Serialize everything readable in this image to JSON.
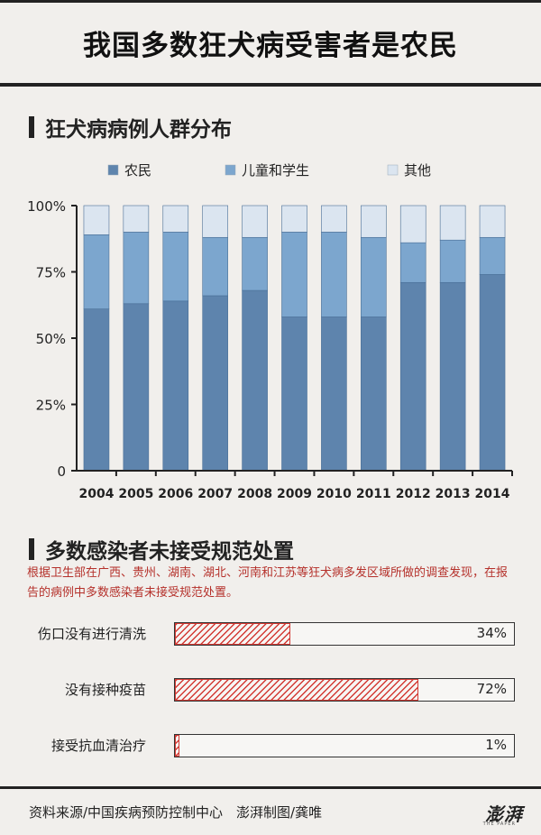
{
  "header": {
    "title": "我国多数狂犬病受害者是农民"
  },
  "section1": {
    "title": "狂犬病病例人群分布"
  },
  "chart_data": {
    "type": "bar",
    "stacked": true,
    "title": "狂犬病病例人群分布",
    "categories": [
      "2004",
      "2005",
      "2006",
      "2007",
      "2008",
      "2009",
      "2010",
      "2011",
      "2012",
      "2013",
      "2014"
    ],
    "series": [
      {
        "name": "农民",
        "color": "#5e84ad",
        "values": [
          61,
          63,
          64,
          66,
          68,
          58,
          58,
          58,
          71,
          71,
          74
        ]
      },
      {
        "name": "儿童和学生",
        "color": "#7ca6ce",
        "values": [
          28,
          27,
          26,
          22,
          20,
          32,
          32,
          30,
          15,
          16,
          14
        ]
      },
      {
        "name": "其他",
        "color": "#dbe5f0",
        "values": [
          11,
          10,
          10,
          12,
          12,
          10,
          10,
          12,
          14,
          13,
          12
        ]
      }
    ],
    "yticks": [
      "0",
      "25%",
      "50%",
      "75%",
      "100%"
    ],
    "ylim": [
      0,
      100
    ],
    "legend_position": "top"
  },
  "section2": {
    "title": "多数感染者未接受规范处置",
    "description": "根据卫生部在广西、贵州、湖南、湖北、河南和江苏等狂犬病多发区域所做的调查发现，在报告的病例中多数感染者未接受规范处置。",
    "stats": [
      {
        "label": "伤口没有进行清洗",
        "value": 34,
        "display": "34%"
      },
      {
        "label": "没有接种疫苗",
        "value": 72,
        "display": "72%"
      },
      {
        "label": "接受抗血清治疗",
        "value": 1,
        "display": "1%"
      }
    ]
  },
  "footer": {
    "source": "资料来源/中国疾病预防控制中心　澎湃制图/龚唯",
    "logo_text": "澎湃",
    "logo_sub": "THE PAPER"
  },
  "colors": {
    "accent": "#d33a34",
    "text": "#222222",
    "background": "#f1efec"
  }
}
